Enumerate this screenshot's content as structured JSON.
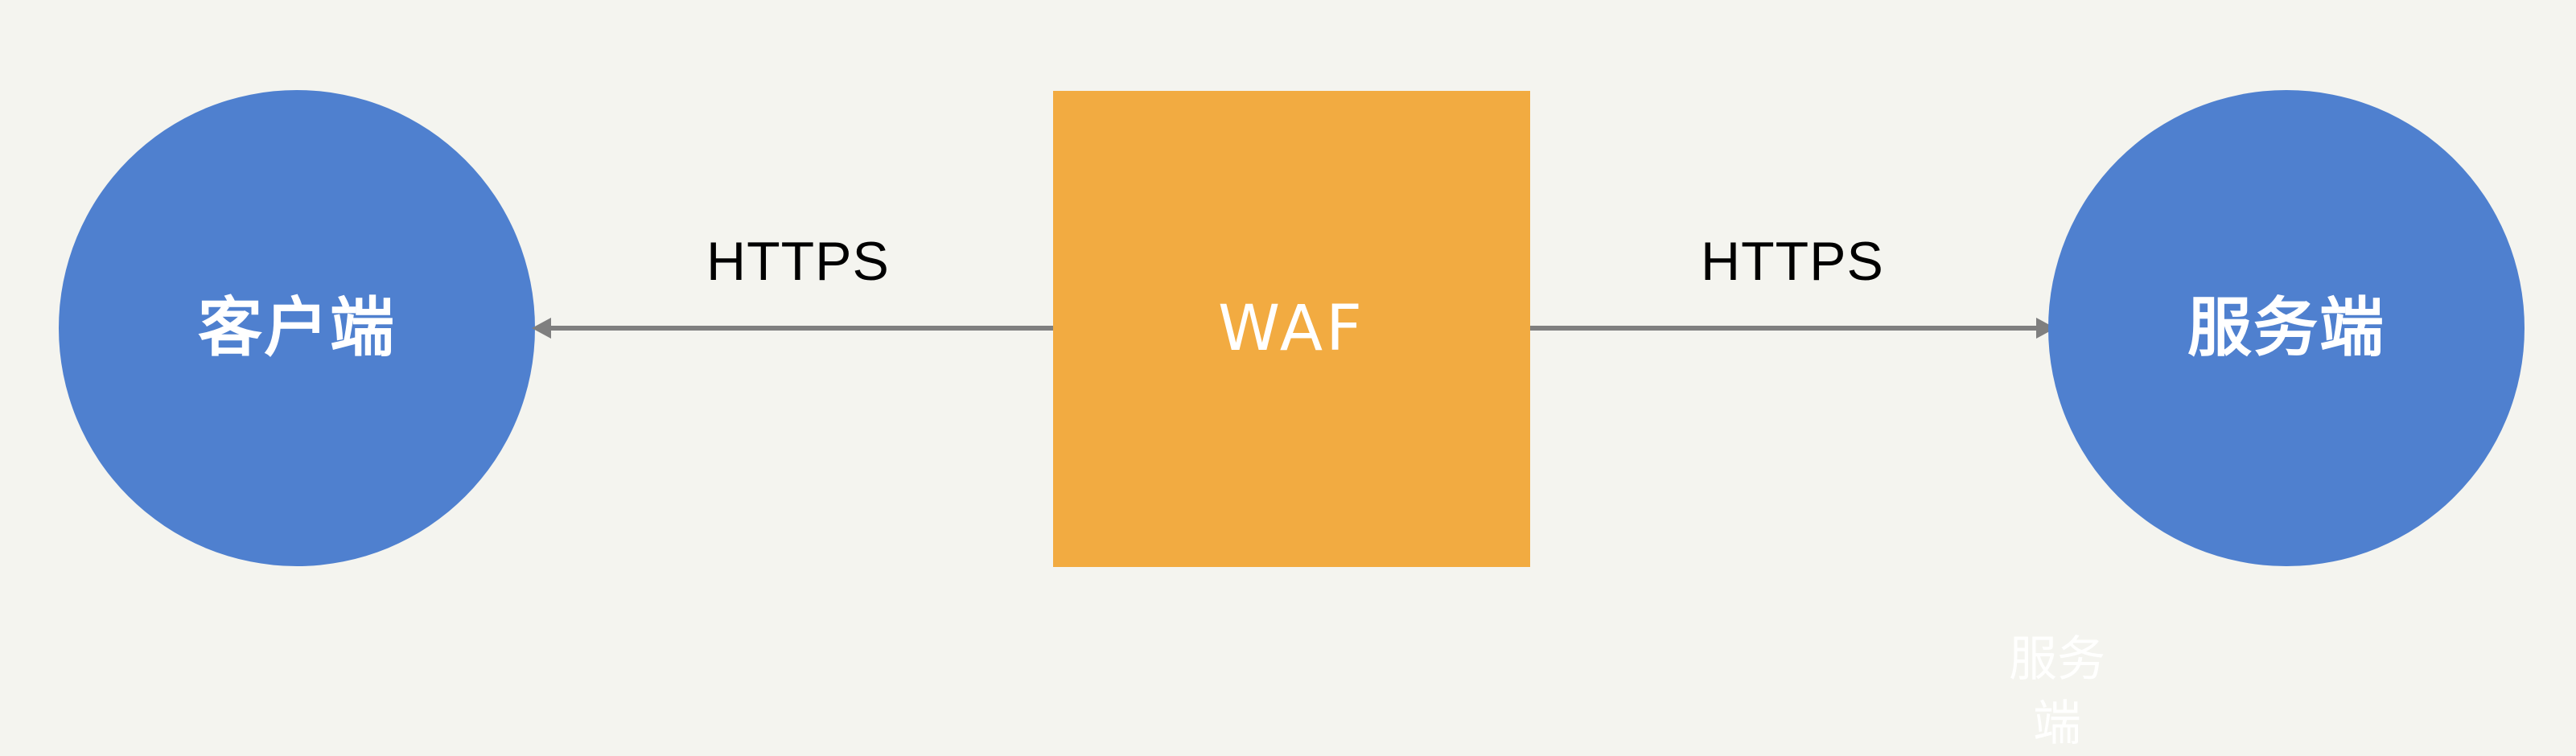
{
  "diagram": {
    "client": {
      "label": "客户端",
      "color": "#4f80cf"
    },
    "waf": {
      "label": "WAF",
      "color": "#f2ab41"
    },
    "server": {
      "label": "服务端",
      "color": "#4f80cf"
    },
    "connections": {
      "left_protocol": "HTTPS",
      "right_protocol": "HTTPS",
      "line_color": "#7f7f7f"
    },
    "ghost_label": "服务端"
  }
}
